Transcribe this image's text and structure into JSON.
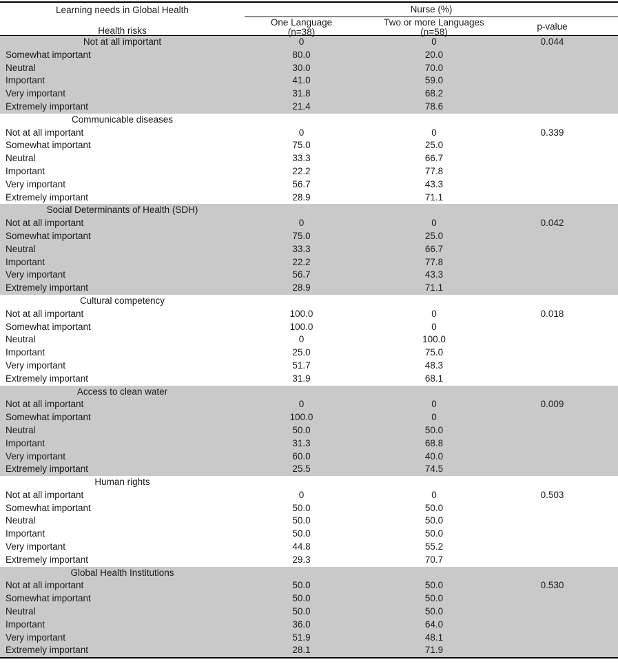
{
  "table": {
    "colors": {
      "section_shade": "#c9c9c9",
      "border": "#000000"
    },
    "header": {
      "col1_title": "Learning needs in Global Health",
      "col1_subtitle": "Health risks",
      "group_title": "Nurse (%)",
      "col2_label": "One Language",
      "col2_n": "(n=38)",
      "col3_label": "Two or more Languages",
      "col3_n": "(n=58)",
      "col4_label": "p-value"
    },
    "sections": [
      {
        "title": null,
        "shaded": true,
        "rows": [
          {
            "label": "Not at all important",
            "label_centered": true,
            "one": "0",
            "two": "0",
            "p": "0.044"
          },
          {
            "label": "Somewhat important",
            "one": "80.0",
            "two": "20.0",
            "p": ""
          },
          {
            "label": "Neutral",
            "one": "30.0",
            "two": "70.0",
            "p": ""
          },
          {
            "label": "Important",
            "one": "41.0",
            "two": "59.0",
            "p": ""
          },
          {
            "label": "Very important",
            "one": "31.8",
            "two": "68.2",
            "p": ""
          },
          {
            "label": "Extremely important",
            "one": "21.4",
            "two": "78.6",
            "p": ""
          }
        ]
      },
      {
        "title": "Communicable diseases",
        "shaded": false,
        "rows": [
          {
            "label": "Not at all important",
            "one": "0",
            "two": "0",
            "p": "0.339"
          },
          {
            "label": "Somewhat important",
            "one": "75.0",
            "two": "25.0",
            "p": ""
          },
          {
            "label": "Neutral",
            "one": "33.3",
            "two": "66.7",
            "p": ""
          },
          {
            "label": "Important",
            "one": "22.2",
            "two": "77.8",
            "p": ""
          },
          {
            "label": "Very important",
            "one": "56.7",
            "two": "43.3",
            "p": ""
          },
          {
            "label": "Extremely important",
            "one": "28.9",
            "two": "71.1",
            "p": ""
          }
        ]
      },
      {
        "title": "Social Determinants of Health (SDH)",
        "shaded": true,
        "rows": [
          {
            "label": "Not at all important",
            "one": "0",
            "two": "0",
            "p": "0.042"
          },
          {
            "label": "Somewhat important",
            "one": "75.0",
            "two": "25.0",
            "p": ""
          },
          {
            "label": "Neutral",
            "one": "33.3",
            "two": "66.7",
            "p": ""
          },
          {
            "label": "Important",
            "one": "22.2",
            "two": "77.8",
            "p": ""
          },
          {
            "label": "Very important",
            "one": "56.7",
            "two": "43.3",
            "p": ""
          },
          {
            "label": "Extremely important",
            "one": "28.9",
            "two": "71.1",
            "p": ""
          }
        ]
      },
      {
        "title": "Cultural competency",
        "shaded": false,
        "rows": [
          {
            "label": "Not at all important",
            "one": "100.0",
            "two": "0",
            "p": "0.018"
          },
          {
            "label": "Somewhat important",
            "one": "100.0",
            "two": "0",
            "p": ""
          },
          {
            "label": "Neutral",
            "one": "0",
            "two": "100.0",
            "p": ""
          },
          {
            "label": "Important",
            "one": "25.0",
            "two": "75.0",
            "p": ""
          },
          {
            "label": "Very important",
            "one": "51.7",
            "two": "48.3",
            "p": ""
          },
          {
            "label": "Extremely important",
            "one": "31.9",
            "two": "68.1",
            "p": ""
          }
        ]
      },
      {
        "title": "Access to clean water",
        "shaded": true,
        "rows": [
          {
            "label": "Not at all important",
            "one": "0",
            "two": "0",
            "p": "0.009"
          },
          {
            "label": "Somewhat important",
            "one": "100.0",
            "two": "0",
            "p": ""
          },
          {
            "label": "Neutral",
            "one": "50.0",
            "two": "50.0",
            "p": ""
          },
          {
            "label": "Important",
            "one": "31.3",
            "two": "68.8",
            "p": ""
          },
          {
            "label": "Very important",
            "one": "60.0",
            "two": "40.0",
            "p": ""
          },
          {
            "label": "Extremely important",
            "one": "25.5",
            "two": "74.5",
            "p": ""
          }
        ]
      },
      {
        "title": "Human rights",
        "shaded": false,
        "rows": [
          {
            "label": "Not at all important",
            "one": "0",
            "two": "0",
            "p": "0.503"
          },
          {
            "label": "Somewhat important",
            "one": "50.0",
            "two": "50.0",
            "p": ""
          },
          {
            "label": "Neutral",
            "one": "50.0",
            "two": "50.0",
            "p": ""
          },
          {
            "label": "Important",
            "one": "50.0",
            "two": "50.0",
            "p": ""
          },
          {
            "label": "Very important",
            "one": "44.8",
            "two": "55.2",
            "p": ""
          },
          {
            "label": "Extremely important",
            "one": "29.3",
            "two": "70.7",
            "p": ""
          }
        ]
      },
      {
        "title": "Global Health Institutions",
        "shaded": true,
        "rows": [
          {
            "label": "Not at all important",
            "one": "50.0",
            "two": "50.0",
            "p": "0.530"
          },
          {
            "label": "Somewhat important",
            "one": "50.0",
            "two": "50.0",
            "p": ""
          },
          {
            "label": "Neutral",
            "one": "50.0",
            "two": "50.0",
            "p": ""
          },
          {
            "label": "Important",
            "one": "36.0",
            "two": "64.0",
            "p": ""
          },
          {
            "label": "Very important",
            "one": "51.9",
            "two": "48.1",
            "p": ""
          },
          {
            "label": "Extremely important",
            "one": "28.1",
            "two": "71.9",
            "p": ""
          }
        ]
      }
    ]
  }
}
